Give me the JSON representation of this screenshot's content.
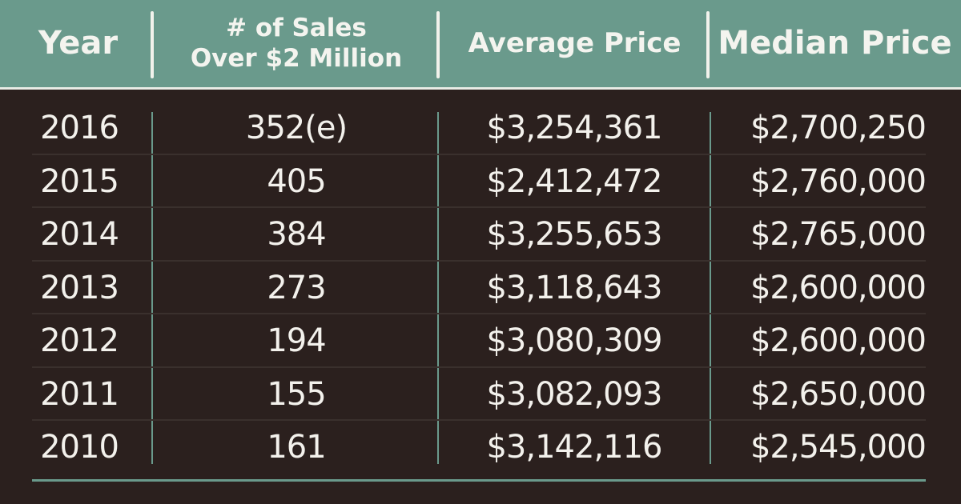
{
  "chart_data": {
    "type": "table",
    "columns": [
      "Year",
      "# of Sales Over $2 Million",
      "Average Price",
      "Median Price"
    ],
    "header": {
      "year": "Year",
      "sales_line1": "# of Sales",
      "sales_line2": "Over $2 Million",
      "average": "Average Price",
      "median": "Median Price"
    },
    "rows": [
      {
        "year": "2016",
        "sales": "352(e)",
        "average": "$3,254,361",
        "median": "$2,700,250"
      },
      {
        "year": "2015",
        "sales": "405",
        "average": "$2,412,472",
        "median": "$2,760,000"
      },
      {
        "year": "2014",
        "sales": "384",
        "average": "$3,255,653",
        "median": "$2,765,000"
      },
      {
        "year": "2013",
        "sales": "273",
        "average": "$3,118,643",
        "median": "$2,600,000"
      },
      {
        "year": "2012",
        "sales": "194",
        "average": "$3,080,309",
        "median": "$2,600,000"
      },
      {
        "year": "2011",
        "sales": "155",
        "average": "$3,082,093",
        "median": "$2,650,000"
      },
      {
        "year": "2010",
        "sales": "161",
        "average": "$3,142,116",
        "median": "$2,545,000"
      }
    ]
  },
  "colors": {
    "header_bg": "#6a9a8c",
    "body_bg": "#2b201e",
    "text": "#f3f1ec",
    "divider": "#6a9a8c"
  }
}
